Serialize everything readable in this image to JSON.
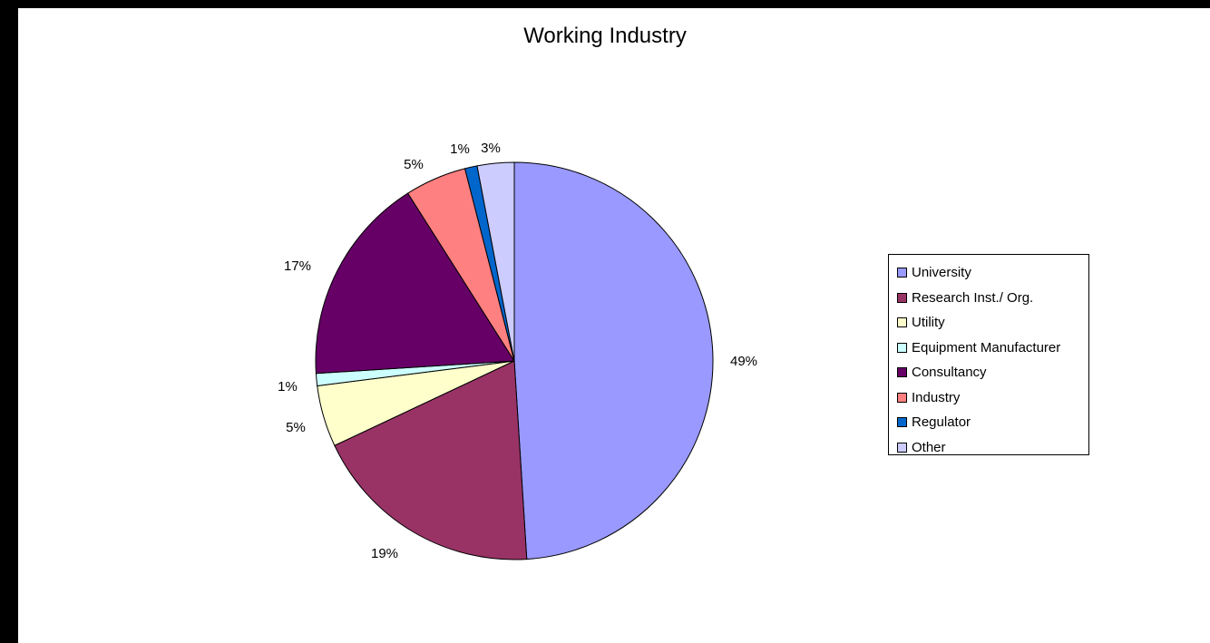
{
  "chart_data": {
    "type": "pie",
    "title": "Working Industry",
    "start_angle_deg": 0,
    "direction": "clockwise",
    "slices": [
      {
        "label": "University",
        "value": 49,
        "data_label": "49%",
        "color": "#9999ff"
      },
      {
        "label": "Research Inst./ Org.",
        "value": 19,
        "data_label": "19%",
        "color": "#993366"
      },
      {
        "label": "Utility",
        "value": 5,
        "data_label": "5%",
        "color": "#ffffcc"
      },
      {
        "label": "Equipment Manufacturer",
        "value": 1,
        "data_label": "1%",
        "color": "#ccffff"
      },
      {
        "label": "Consultancy",
        "value": 17,
        "data_label": "17%",
        "color": "#660066"
      },
      {
        "label": "Industry",
        "value": 5,
        "data_label": "5%",
        "color": "#ff8080"
      },
      {
        "label": "Regulator",
        "value": 1,
        "data_label": "1%",
        "color": "#0066cc"
      },
      {
        "label": "Other",
        "value": 3,
        "data_label": "3%",
        "color": "#ccccff"
      }
    ],
    "legend": {
      "position": "right"
    }
  }
}
